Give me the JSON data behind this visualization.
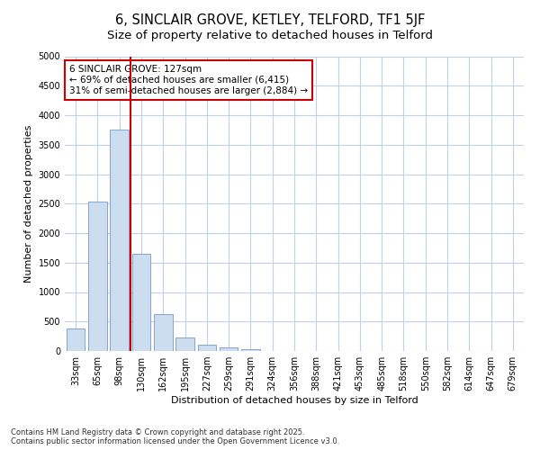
{
  "title": "6, SINCLAIR GROVE, KETLEY, TELFORD, TF1 5JF",
  "subtitle": "Size of property relative to detached houses in Telford",
  "xlabel": "Distribution of detached houses by size in Telford",
  "ylabel": "Number of detached properties",
  "categories": [
    "33sqm",
    "65sqm",
    "98sqm",
    "130sqm",
    "162sqm",
    "195sqm",
    "227sqm",
    "259sqm",
    "291sqm",
    "324sqm",
    "356sqm",
    "388sqm",
    "421sqm",
    "453sqm",
    "485sqm",
    "518sqm",
    "550sqm",
    "582sqm",
    "614sqm",
    "647sqm",
    "679sqm"
  ],
  "values": [
    380,
    2530,
    3760,
    1650,
    620,
    235,
    100,
    60,
    30,
    5,
    5,
    0,
    0,
    0,
    0,
    0,
    0,
    0,
    0,
    0,
    0
  ],
  "bar_color": "#ccddf0",
  "bar_edge_color": "#7799cc",
  "vline_color": "#cc0000",
  "vline_x_index": 2.5,
  "annotation_line1": "6 SINCLAIR GROVE: 127sqm",
  "annotation_line2": "← 69% of detached houses are smaller (6,415)",
  "annotation_line3": "31% of semi-detached houses are larger (2,884) →",
  "annotation_box_color": "#cc0000",
  "annotation_bg": "#ffffff",
  "ylim": [
    0,
    5000
  ],
  "yticks": [
    0,
    500,
    1000,
    1500,
    2000,
    2500,
    3000,
    3500,
    4000,
    4500,
    5000
  ],
  "grid_color": "#c0d0e8",
  "fig_bg": "#ffffff",
  "plot_bg": "#ffffff",
  "footnote": "Contains HM Land Registry data © Crown copyright and database right 2025.\nContains public sector information licensed under the Open Government Licence v3.0.",
  "title_fontsize": 10.5,
  "subtitle_fontsize": 9.5,
  "axis_label_fontsize": 8,
  "tick_fontsize": 7,
  "annotation_fontsize": 7.5,
  "footnote_fontsize": 6
}
